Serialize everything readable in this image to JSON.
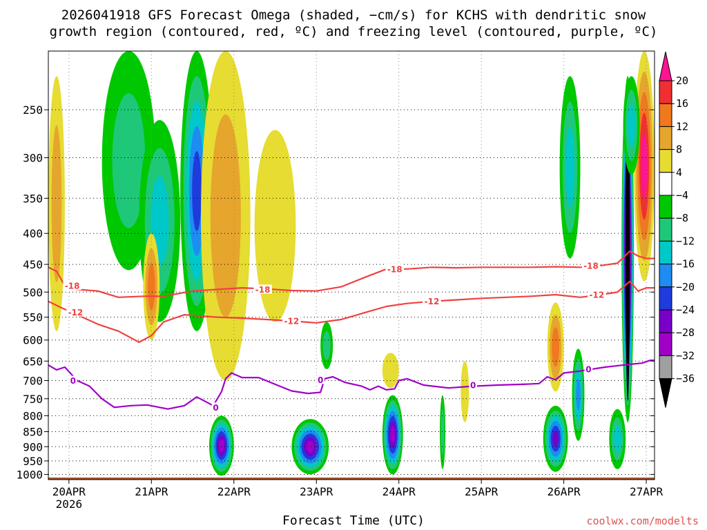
{
  "chart_data": {
    "type": "heatmap",
    "title_line1": "2026041918 GFS Forecast Omega (shaded, −cm/s) for KCHS with dendritic snow",
    "title_line2": "growth region (contoured, red, ºC) and freezing level (contoured, purple, ºC)",
    "xlabel": "Forecast Time (UTC)",
    "ylabel": "",
    "credit": "coolwx.com/modelts",
    "x_ticks": [
      "20APR",
      "21APR",
      "22APR",
      "23APR",
      "24APR",
      "25APR",
      "26APR",
      "27APR"
    ],
    "x_year": "2026",
    "x_range_days": [
      -0.25,
      7.1
    ],
    "y_ticks": [
      250,
      300,
      350,
      400,
      450,
      500,
      550,
      600,
      650,
      700,
      750,
      800,
      850,
      900,
      950,
      1000
    ],
    "y_range_hpa": [
      200,
      1020
    ],
    "colorbar_labels": [
      "20",
      "16",
      "12",
      "8",
      "4",
      "−4",
      "−8",
      "−12",
      "−16",
      "−20",
      "−24",
      "−28",
      "−32",
      "−36"
    ],
    "colorbar_colors": [
      "#ff1493",
      "#f03030",
      "#f0781e",
      "#e6a52d",
      "#e6dc32",
      "#ffffff",
      "#00c800",
      "#1ec878",
      "#00c8c8",
      "#1e8cf0",
      "#1e3cdc",
      "#7800c8",
      "#a000c8",
      "#a0a0a0",
      "#000000"
    ],
    "series": [
      {
        "name": "-18",
        "color": "#f04040",
        "kind": "dendritic-snow-growth",
        "x": [
          -0.25,
          -0.15,
          -0.05,
          0.1,
          0.35,
          0.6,
          0.9,
          1.15,
          1.5,
          1.8,
          2.1,
          2.4,
          2.7,
          3.0,
          3.3,
          3.6,
          3.85,
          4.1,
          4.4,
          4.7,
          5.0,
          5.3,
          5.6,
          5.9,
          6.2,
          6.45,
          6.65,
          6.8,
          6.9,
          7.0,
          7.1
        ],
        "values": [
          455,
          462,
          488,
          495,
          498,
          510,
          508,
          508,
          498,
          495,
          492,
          494,
          497,
          498,
          490,
          472,
          458,
          458,
          455,
          456,
          455,
          455,
          455,
          454,
          455,
          452,
          448,
          428,
          436,
          440,
          440
        ]
      },
      {
        "name": "-12",
        "color": "#f04040",
        "kind": "dendritic-snow-growth",
        "x": [
          -0.25,
          -0.1,
          0.1,
          0.35,
          0.6,
          0.85,
          1.0,
          1.15,
          1.4,
          1.8,
          2.1,
          2.4,
          2.7,
          3.0,
          3.3,
          3.6,
          3.85,
          4.1,
          4.4,
          4.7,
          5.0,
          5.3,
          5.6,
          5.9,
          6.2,
          6.45,
          6.65,
          6.8,
          6.9,
          7.0,
          7.1
        ],
        "values": [
          518,
          530,
          545,
          565,
          580,
          605,
          590,
          560,
          545,
          550,
          552,
          555,
          558,
          562,
          555,
          540,
          528,
          522,
          518,
          515,
          512,
          510,
          508,
          505,
          510,
          505,
          500,
          480,
          498,
          492,
          492
        ]
      },
      {
        "name": "0",
        "color": "#a000c8",
        "kind": "freezing-level",
        "x": [
          -0.25,
          -0.15,
          -0.05,
          0.1,
          0.25,
          0.4,
          0.55,
          0.75,
          0.95,
          1.2,
          1.4,
          1.55,
          1.75,
          1.85,
          1.9,
          1.97,
          2.1,
          2.3,
          2.5,
          2.7,
          2.9,
          3.05,
          3.1,
          3.2,
          3.35,
          3.55,
          3.65,
          3.75,
          3.85,
          3.95,
          4.0,
          4.1,
          4.3,
          4.6,
          4.9,
          5.2,
          5.5,
          5.7,
          5.8,
          5.9,
          6.0,
          6.2,
          6.5,
          6.8,
          6.95,
          7.05,
          7.1
        ],
        "values": [
          660,
          672,
          665,
          700,
          715,
          750,
          775,
          770,
          768,
          780,
          770,
          745,
          770,
          730,
          695,
          680,
          692,
          692,
          710,
          728,
          735,
          732,
          695,
          690,
          705,
          715,
          725,
          715,
          725,
          722,
          700,
          695,
          712,
          720,
          715,
          712,
          710,
          708,
          690,
          698,
          680,
          675,
          665,
          658,
          655,
          648,
          648
        ]
      }
    ],
    "contour_labels": [
      {
        "text": "-18",
        "x": 0.04,
        "p": 488,
        "color": "#f04040"
      },
      {
        "text": "-12",
        "x": 0.08,
        "p": 540,
        "color": "#f04040"
      },
      {
        "text": "-18",
        "x": 2.35,
        "p": 495,
        "color": "#f04040"
      },
      {
        "text": "-12",
        "x": 2.7,
        "p": 558,
        "color": "#f04040"
      },
      {
        "text": "-18",
        "x": 3.95,
        "p": 458,
        "color": "#f04040"
      },
      {
        "text": "-12",
        "x": 4.4,
        "p": 518,
        "color": "#f04040"
      },
      {
        "text": "-18",
        "x": 6.33,
        "p": 452,
        "color": "#f04040"
      },
      {
        "text": "-12",
        "x": 6.4,
        "p": 505,
        "color": "#f04040"
      },
      {
        "text": "0",
        "x": 0.05,
        "p": 700,
        "color": "#a000c8"
      },
      {
        "text": "0",
        "x": 1.78,
        "p": 775,
        "color": "#a000c8"
      },
      {
        "text": "0",
        "x": 3.05,
        "p": 698,
        "color": "#a000c8"
      },
      {
        "text": "0",
        "x": 4.9,
        "p": 712,
        "color": "#a000c8"
      },
      {
        "text": "0",
        "x": 6.3,
        "p": 670,
        "color": "#a000c8"
      }
    ],
    "omega_blobs": [
      {
        "x0": -0.25,
        "x1": -0.05,
        "p0": 220,
        "p1": 580,
        "peak": 8
      },
      {
        "x0": 0.4,
        "x1": 1.05,
        "p0": 200,
        "p1": 460,
        "peak": -10
      },
      {
        "x0": 0.85,
        "x1": 1.35,
        "p0": 260,
        "p1": 560,
        "peak": -14
      },
      {
        "x0": 1.35,
        "x1": 1.75,
        "p0": 200,
        "p1": 580,
        "peak": -20
      },
      {
        "x0": 0.9,
        "x1": 1.1,
        "p0": 400,
        "p1": 600,
        "peak": 14
      },
      {
        "x0": 1.6,
        "x1": 2.2,
        "p0": 200,
        "p1": 700,
        "peak": 8
      },
      {
        "x0": 2.25,
        "x1": 2.75,
        "p0": 270,
        "p1": 560,
        "peak": 6
      },
      {
        "x0": 1.7,
        "x1": 2.0,
        "p0": 800,
        "p1": 1005,
        "peak": -30
      },
      {
        "x0": 2.7,
        "x1": 3.15,
        "p0": 810,
        "p1": 1000,
        "peak": -28
      },
      {
        "x0": 3.8,
        "x1": 4.05,
        "p0": 740,
        "p1": 1000,
        "peak": -28
      },
      {
        "x0": 3.05,
        "x1": 3.2,
        "p0": 560,
        "p1": 670,
        "peak": -8
      },
      {
        "x0": 3.8,
        "x1": 4.0,
        "p0": 630,
        "p1": 720,
        "peak": 6
      },
      {
        "x0": 4.5,
        "x1": 4.56,
        "p0": 740,
        "p1": 980,
        "peak": -10
      },
      {
        "x0": 4.75,
        "x1": 4.85,
        "p0": 650,
        "p1": 820,
        "peak": 5
      },
      {
        "x0": 5.75,
        "x1": 6.05,
        "p0": 770,
        "p1": 990,
        "peak": -26
      },
      {
        "x0": 5.8,
        "x1": 6.0,
        "p0": 520,
        "p1": 730,
        "peak": 14
      },
      {
        "x0": 6.1,
        "x1": 6.25,
        "p0": 620,
        "p1": 880,
        "peak": -16
      },
      {
        "x0": 5.95,
        "x1": 6.2,
        "p0": 220,
        "p1": 440,
        "peak": -14
      },
      {
        "x0": 6.55,
        "x1": 6.75,
        "p0": 780,
        "p1": 980,
        "peak": -14
      },
      {
        "x0": 6.7,
        "x1": 6.85,
        "p0": 220,
        "p1": 820,
        "peak": -40
      },
      {
        "x0": 6.85,
        "x1": 7.1,
        "p0": 200,
        "p1": 480,
        "peak": 20
      },
      {
        "x0": 6.72,
        "x1": 6.92,
        "p0": 220,
        "p1": 320,
        "peak": -12
      }
    ]
  }
}
